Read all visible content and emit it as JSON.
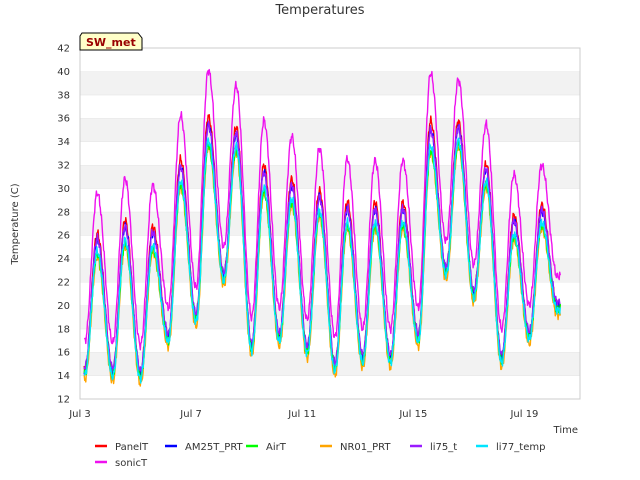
{
  "chart_data": {
    "type": "line",
    "title": "Temperatures",
    "xlabel": "Time",
    "ylabel": "Temperature (C)",
    "station_label": "SW_met",
    "xlim": [
      0,
      18.0
    ],
    "ylim": [
      12,
      42
    ],
    "yticks": [
      12,
      14,
      16,
      18,
      20,
      22,
      24,
      26,
      28,
      30,
      32,
      34,
      36,
      38,
      40,
      42
    ],
    "xticks": [
      {
        "label": "Jul 3",
        "day": 0
      },
      {
        "label": "Jul 7",
        "day": 4
      },
      {
        "label": "Jul 11",
        "day": 8
      },
      {
        "label": "Jul 15",
        "day": 12
      },
      {
        "label": "Jul 19",
        "day": 16
      }
    ],
    "grid": "horizontal-bands",
    "legend_position": "bottom",
    "daily_peak_day_offset": 0.62,
    "daily_min_day_offset": 0.18,
    "days": [
      {
        "day": 0,
        "min": 14.0,
        "max": 24.5
      },
      {
        "day": 1,
        "min": 13.8,
        "max": 25.5
      },
      {
        "day": 2,
        "min": 13.6,
        "max": 25.0
      },
      {
        "day": 3,
        "min": 16.8,
        "max": 30.5
      },
      {
        "day": 4,
        "min": 18.5,
        "max": 34.0
      },
      {
        "day": 5,
        "min": 22.0,
        "max": 33.5
      },
      {
        "day": 6,
        "min": 16.0,
        "max": 30.0
      },
      {
        "day": 7,
        "min": 16.8,
        "max": 29.0
      },
      {
        "day": 8,
        "min": 15.8,
        "max": 28.0
      },
      {
        "day": 9,
        "min": 14.3,
        "max": 27.0
      },
      {
        "day": 10,
        "min": 15.0,
        "max": 27.0
      },
      {
        "day": 11,
        "min": 15.0,
        "max": 27.0
      },
      {
        "day": 12,
        "min": 16.8,
        "max": 33.5
      },
      {
        "day": 13,
        "min": 22.5,
        "max": 34.0
      },
      {
        "day": 14,
        "min": 20.5,
        "max": 30.5
      },
      {
        "day": 15,
        "min": 15.0,
        "max": 26.0
      },
      {
        "day": 16,
        "min": 17.0,
        "max": 27.0
      },
      {
        "day": 17,
        "min": 19.5,
        "max": 19.5
      }
    ],
    "series": [
      {
        "name": "PanelT",
        "color": "#ff0000",
        "offset_min": 0.6,
        "peak_scale": 1.1
      },
      {
        "name": "AM25T_PRT",
        "color": "#0000ff",
        "offset_min": 0.5,
        "peak_scale": 1.06
      },
      {
        "name": "AirT",
        "color": "#00ff00",
        "offset_min": 0.2,
        "peak_scale": 0.97
      },
      {
        "name": "NR01_PRT",
        "color": "#ffa500",
        "offset_min": -0.3,
        "peak_scale": 0.99
      },
      {
        "name": "li75_t",
        "color": "#9a1bff",
        "offset_min": 0.8,
        "peak_scale": 1.04
      },
      {
        "name": "li77_temp",
        "color": "#00e5ff",
        "offset_min": 0.1,
        "peak_scale": 1.0
      },
      {
        "name": "sonicT",
        "color": "#ee11ee",
        "offset_min": 3.0,
        "peak_scale": 1.2
      }
    ]
  }
}
